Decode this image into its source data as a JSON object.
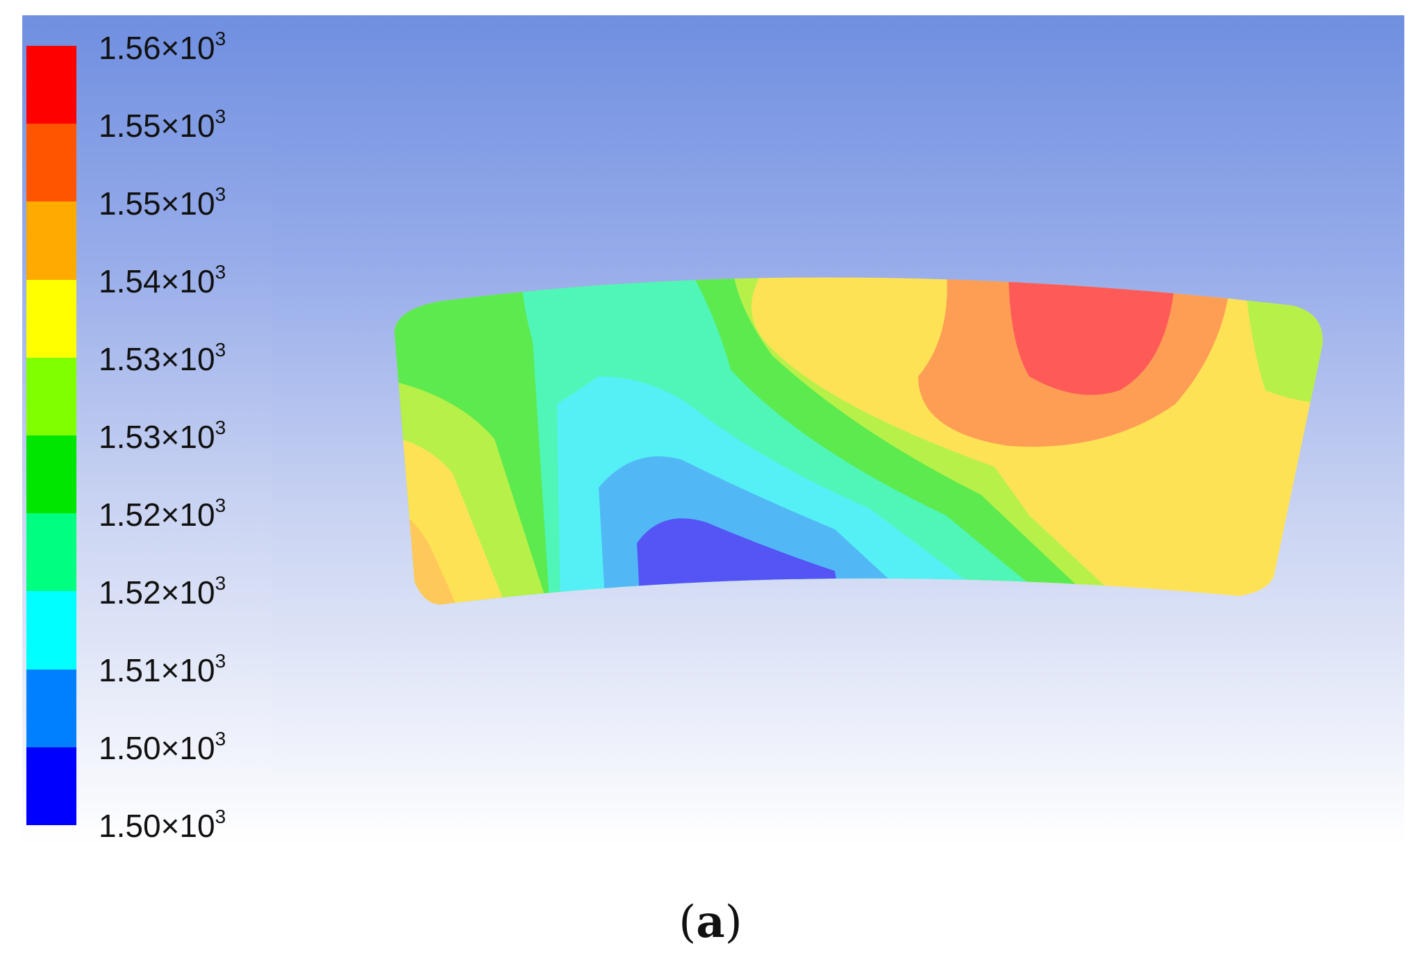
{
  "legend": {
    "colors": [
      "#ff0000",
      "#ff5500",
      "#ffaa00",
      "#ffff00",
      "#80ff00",
      "#00e600",
      "#00ff80",
      "#00ffff",
      "#0080ff",
      "#0000ff"
    ],
    "ticks": [
      {
        "mantissa": "1.56",
        "times": "×10",
        "exp": "3"
      },
      {
        "mantissa": "1.55",
        "times": "×10",
        "exp": "3"
      },
      {
        "mantissa": "1.55",
        "times": "×10",
        "exp": "3"
      },
      {
        "mantissa": "1.54",
        "times": "×10",
        "exp": "3"
      },
      {
        "mantissa": "1.53",
        "times": "×10",
        "exp": "3"
      },
      {
        "mantissa": "1.53",
        "times": "×10",
        "exp": "3"
      },
      {
        "mantissa": "1.52",
        "times": "×10",
        "exp": "3"
      },
      {
        "mantissa": "1.52",
        "times": "×10",
        "exp": "3"
      },
      {
        "mantissa": "1.51",
        "times": "×10",
        "exp": "3"
      },
      {
        "mantissa": "1.50",
        "times": "×10",
        "exp": "3"
      },
      {
        "mantissa": "1.50",
        "times": "×10",
        "exp": "3"
      }
    ]
  },
  "contour_colors": {
    "green": "#5dea4e",
    "lime": "#b8f04a",
    "teal": "#50f5b8",
    "cyan": "#55f0f5",
    "lightblue": "#52b8f5",
    "blue": "#5555f5",
    "yellow": "#fee256",
    "orange": "#fe9e55",
    "red": "#fe5a58"
  },
  "caption": {
    "open": "(",
    "letter": "a",
    "close": ")"
  }
}
